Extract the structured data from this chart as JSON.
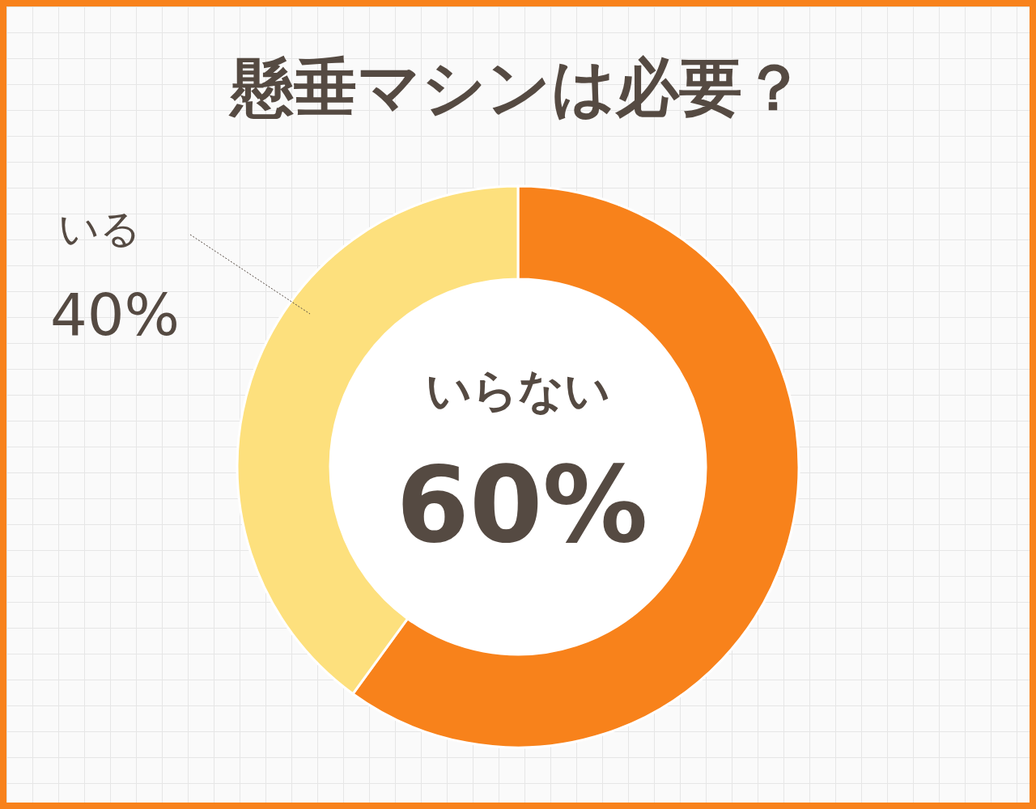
{
  "chart_data": {
    "type": "donut",
    "title": "懸垂マシンは必要？",
    "categories": [
      "いらない",
      "いる"
    ],
    "values": [
      60,
      40
    ],
    "colors": [
      "#f8821b",
      "#fde07d"
    ],
    "value_labels": [
      "60%",
      "40%"
    ]
  }
}
